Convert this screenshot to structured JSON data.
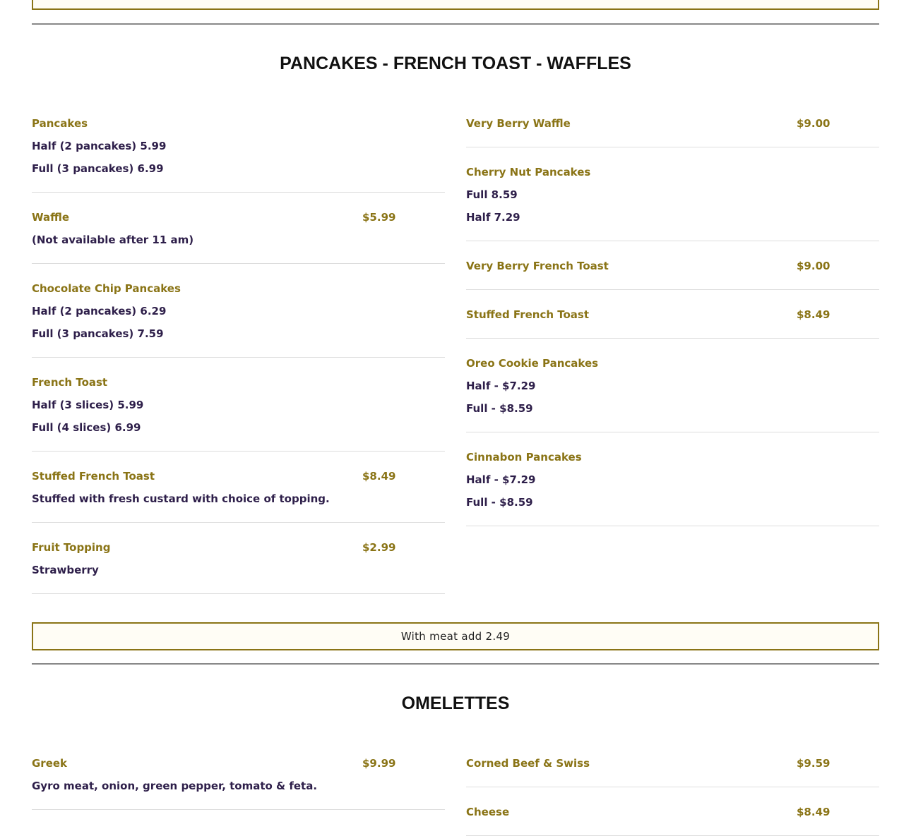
{
  "top_box": {
    "text": ""
  },
  "sections": [
    {
      "title": "PANCAKES - FRENCH TOAST - WAFFLES",
      "left": [
        {
          "name": "Pancakes",
          "price": "",
          "desc": [
            "Half (2 pancakes) 5.99",
            "Full (3 pancakes) 6.99"
          ]
        },
        {
          "name": "Waffle",
          "price": "$5.99",
          "desc": [
            "(Not available after 11 am)"
          ]
        },
        {
          "name": "Chocolate Chip Pancakes",
          "price": "",
          "desc": [
            "Half (2 pancakes) 6.29",
            "Full (3 pancakes) 7.59"
          ]
        },
        {
          "name": "French Toast",
          "price": "",
          "desc": [
            "Half (3 slices) 5.99",
            "Full (4 slices) 6.99"
          ]
        },
        {
          "name": "Stuffed French Toast",
          "price": "$8.49",
          "desc": [
            "Stuffed with fresh custard with choice of topping."
          ]
        },
        {
          "name": "Fruit Topping",
          "price": "$2.99",
          "desc": [
            "Strawberry"
          ]
        }
      ],
      "right": [
        {
          "name": "Very Berry Waffle",
          "price": "$9.00",
          "desc": []
        },
        {
          "name": "Cherry Nut Pancakes",
          "price": "",
          "desc": [
            "Full 8.59",
            "Half 7.29"
          ]
        },
        {
          "name": "Very Berry French Toast",
          "price": "$9.00",
          "desc": []
        },
        {
          "name": "Stuffed French Toast",
          "price": "$8.49",
          "desc": []
        },
        {
          "name": "Oreo Cookie Pancakes",
          "price": "",
          "desc": [
            "Half - $7.29",
            "Full - $8.59"
          ]
        },
        {
          "name": "Cinnabon Pancakes",
          "price": "",
          "desc": [
            "Half - $7.29",
            "Full - $8.59"
          ]
        }
      ],
      "note": "With meat add 2.49"
    },
    {
      "title": "OMELETTES",
      "left": [
        {
          "name": "Greek",
          "price": "$9.99",
          "desc": [
            "Gyro meat, onion, green pepper, tomato & feta."
          ]
        }
      ],
      "right": [
        {
          "name": "Corned Beef & Swiss",
          "price": "$9.59",
          "desc": []
        },
        {
          "name": "Cheese",
          "price": "$8.49",
          "desc": []
        }
      ]
    }
  ],
  "colors": {
    "accent": "#8a7416",
    "desc": "#2e1f4a"
  }
}
